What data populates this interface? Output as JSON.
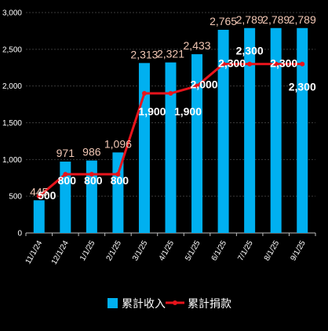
{
  "chart_data": {
    "type": "bar",
    "categories": [
      "11/1/24",
      "12/1/24",
      "1/1/25",
      "2/1/25",
      "3/1/25",
      "4/1/25",
      "5/1/25",
      "6/1/25",
      "7/1/25",
      "8/1/25",
      "9/1/25"
    ],
    "series": [
      {
        "name": "累計收入",
        "type": "bar",
        "values": [
          445,
          971,
          986,
          1096,
          2313,
          2321,
          2433,
          2765,
          2789,
          2789,
          2789
        ],
        "labels": [
          "445",
          "971",
          "986",
          "1,096",
          "2,313",
          "2,321",
          "2,433",
          "2,765",
          "2,789",
          "2,789",
          "2,789"
        ],
        "color": "#00b0f0"
      },
      {
        "name": "累計捐款",
        "type": "line",
        "values": [
          500,
          800,
          800,
          800,
          1900,
          1900,
          2000,
          2300,
          2300,
          2300,
          2300
        ],
        "labels": [
          "500",
          "800",
          "800",
          "800",
          "1,900",
          "1,900",
          "2,000",
          "2,300",
          "2,300",
          "2,300",
          "2,300"
        ],
        "color": "#e8141c"
      }
    ],
    "y_ticks": [
      "0",
      "500",
      "1,000",
      "1,500",
      "2,000",
      "2,500",
      "3,000"
    ],
    "ylim": [
      0,
      3000
    ],
    "grid": true,
    "legend_position": "bottom",
    "background": "#000000"
  }
}
